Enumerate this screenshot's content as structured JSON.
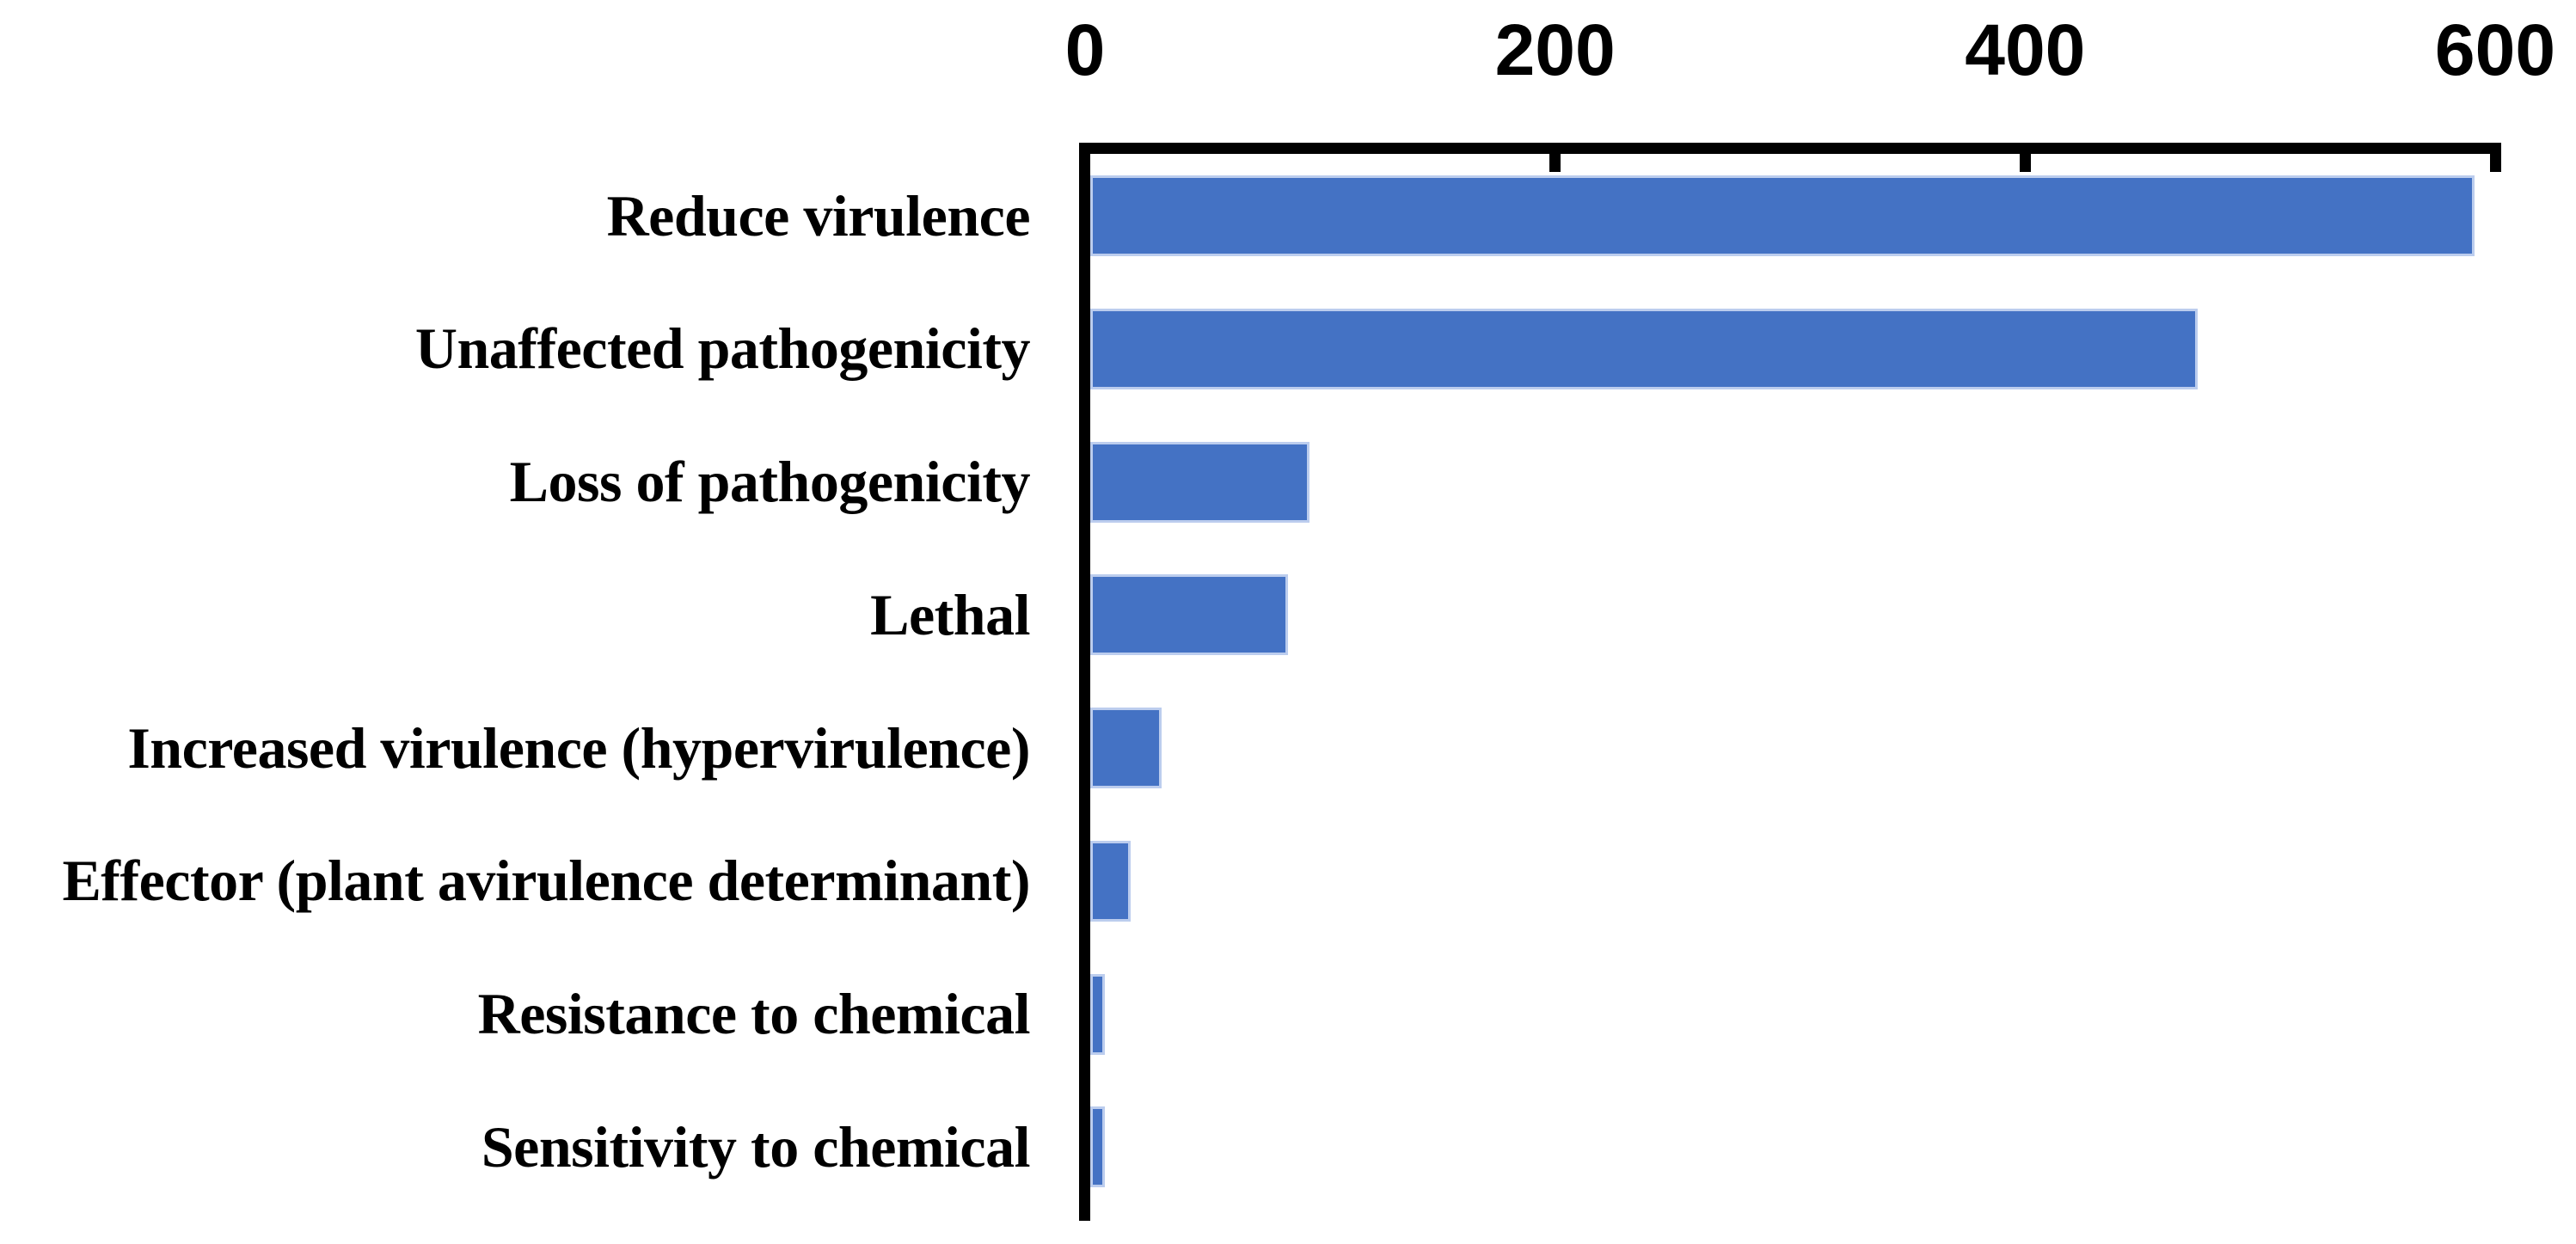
{
  "chart_data": {
    "type": "bar",
    "orientation": "horizontal",
    "categories": [
      "Reduce virulence",
      "Unaffected pathogenicity",
      "Loss of pathogenicity",
      "Lethal",
      "Increased virulence (hypervirulence)",
      "Effector (plant avirulence determinant)",
      "Resistance to chemical",
      "Sensitivity to chemical"
    ],
    "values": [
      587,
      469,
      91,
      82,
      28,
      15,
      4,
      4
    ],
    "xlim": [
      0,
      600
    ],
    "xticks": [
      0,
      200,
      400,
      600
    ],
    "grid": false,
    "legend": false,
    "axis_position": "top",
    "colors": {
      "bar_fill": "#4472C4",
      "bar_edge": "#bccdee",
      "axis": "#000000",
      "text": "#000000",
      "background": "#ffffff"
    }
  }
}
